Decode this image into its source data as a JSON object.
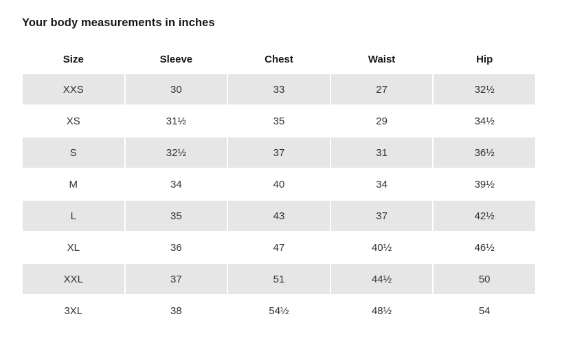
{
  "title": "Your body measurements in inches",
  "colors": {
    "row_shade": "#e6e6e6",
    "title_text": "#151515",
    "cell_text": "#333333"
  },
  "table": {
    "headers": [
      "Size",
      "Sleeve",
      "Chest",
      "Waist",
      "Hip"
    ],
    "rows": [
      [
        "XXS",
        "30",
        "33",
        "27",
        "32½"
      ],
      [
        "XS",
        "31½",
        "35",
        "29",
        "34½"
      ],
      [
        "S",
        "32½",
        "37",
        "31",
        "36½"
      ],
      [
        "M",
        "34",
        "40",
        "34",
        "39½"
      ],
      [
        "L",
        "35",
        "43",
        "37",
        "42½"
      ],
      [
        "XL",
        "36",
        "47",
        "40½",
        "46½"
      ],
      [
        "XXL",
        "37",
        "51",
        "44½",
        "50"
      ],
      [
        "3XL",
        "38",
        "54½",
        "48½",
        "54"
      ]
    ]
  }
}
